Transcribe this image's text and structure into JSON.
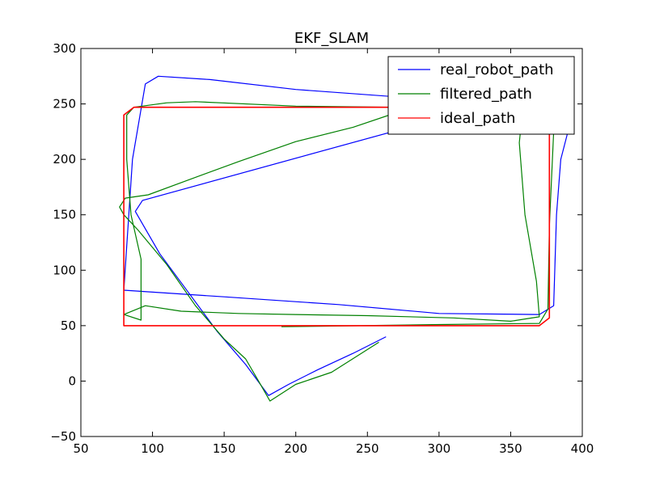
{
  "chart_data": {
    "type": "line",
    "title": "EKF_SLAM",
    "xlabel": "",
    "ylabel": "",
    "xlim": [
      50,
      400
    ],
    "ylim": [
      -50,
      300
    ],
    "xticks": [
      50,
      100,
      150,
      200,
      250,
      300,
      350,
      400
    ],
    "yticks": [
      -50,
      0,
      50,
      100,
      150,
      200,
      250,
      300
    ],
    "grid": false,
    "legend_position": "top-right",
    "series": [
      {
        "name": "real_robot_path",
        "color": "#0000ff",
        "points": [
          [
            263,
            40
          ],
          [
            240,
            25
          ],
          [
            215,
            10
          ],
          [
            195,
            -3
          ],
          [
            181,
            -13
          ],
          [
            165,
            15
          ],
          [
            145,
            45
          ],
          [
            125,
            80
          ],
          [
            105,
            115
          ],
          [
            88,
            153
          ],
          [
            93,
            163
          ],
          [
            290,
            233
          ],
          [
            360,
            250
          ],
          [
            285,
            255
          ],
          [
            200,
            263
          ],
          [
            140,
            272
          ],
          [
            104,
            275
          ],
          [
            95,
            268
          ],
          [
            86,
            200
          ],
          [
            80,
            82
          ],
          [
            150,
            76
          ],
          [
            230,
            69
          ],
          [
            300,
            61
          ],
          [
            370,
            60
          ],
          [
            380,
            68
          ],
          [
            382,
            150
          ],
          [
            385,
            200
          ],
          [
            392,
            235
          ]
        ]
      },
      {
        "name": "filtered_path",
        "color": "#008000",
        "points": [
          [
            258,
            35
          ],
          [
            225,
            8
          ],
          [
            200,
            -3
          ],
          [
            182,
            -18
          ],
          [
            174,
            0
          ],
          [
            165,
            20
          ],
          [
            150,
            38
          ],
          [
            130,
            68
          ],
          [
            110,
            105
          ],
          [
            90,
            136
          ],
          [
            80,
            150
          ],
          [
            77,
            157
          ],
          [
            81,
            165
          ],
          [
            97,
            168
          ],
          [
            120,
            179
          ],
          [
            160,
            198
          ],
          [
            200,
            216
          ],
          [
            240,
            229
          ],
          [
            270,
            242
          ],
          [
            300,
            247
          ],
          [
            270,
            247
          ],
          [
            200,
            248
          ],
          [
            130,
            252
          ],
          [
            110,
            251
          ],
          [
            87,
            247
          ],
          [
            82,
            240
          ],
          [
            82,
            200
          ],
          [
            85,
            150
          ],
          [
            92,
            110
          ],
          [
            92,
            55
          ],
          [
            80,
            60
          ],
          [
            95,
            68
          ],
          [
            120,
            63
          ],
          [
            160,
            61
          ],
          [
            200,
            60
          ],
          [
            250,
            59
          ],
          [
            310,
            57
          ],
          [
            350,
            54
          ],
          [
            370,
            58
          ],
          [
            368,
            90
          ],
          [
            360,
            150
          ],
          [
            356,
            215
          ],
          [
            358,
            240
          ],
          [
            365,
            250
          ],
          [
            375,
            250
          ],
          [
            380,
            225
          ],
          [
            377,
            140
          ],
          [
            376,
            65
          ],
          [
            370,
            52
          ],
          [
            300,
            51
          ],
          [
            190,
            49
          ]
        ]
      },
      {
        "name": "ideal_path",
        "color": "#ff0000",
        "points": [
          [
            190,
            50
          ],
          [
            80,
            50
          ],
          [
            80,
            240
          ],
          [
            87,
            247
          ],
          [
            377,
            247
          ],
          [
            377,
            57
          ],
          [
            370,
            50
          ],
          [
            190,
            50
          ]
        ]
      }
    ]
  }
}
